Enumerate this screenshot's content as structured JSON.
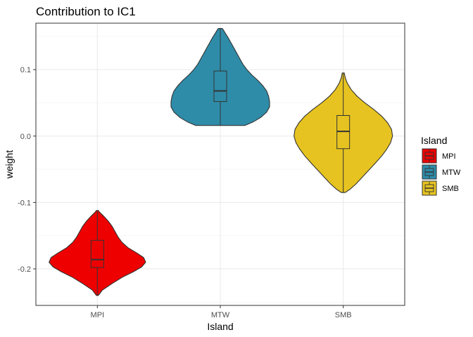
{
  "chart_data": {
    "type": "violin",
    "title": "Contribution to IC1",
    "xlabel": "Island",
    "ylabel": "weight",
    "ylim": [
      -0.255,
      0.17
    ],
    "y_ticks": [
      -0.2,
      -0.1,
      0.0,
      0.1
    ],
    "y_tick_labels": [
      "-0.2",
      "-0.1",
      "0.0",
      "0.1"
    ],
    "categories": [
      "MPI",
      "MTW",
      "SMB"
    ],
    "legend": {
      "title": "Island",
      "position": "right",
      "entries": [
        "MPI",
        "MTW",
        "SMB"
      ]
    },
    "grid": true,
    "series": [
      {
        "category": "MPI",
        "color": "#ee0000",
        "min": -0.24,
        "q1": -0.198,
        "median": -0.186,
        "q3": -0.157,
        "max": -0.112,
        "density": [
          [
            -0.24,
            0.02
          ],
          [
            -0.232,
            0.1
          ],
          [
            -0.222,
            0.3
          ],
          [
            -0.212,
            0.52
          ],
          [
            -0.204,
            0.74
          ],
          [
            -0.197,
            0.9
          ],
          [
            -0.19,
            0.98
          ],
          [
            -0.183,
            0.94
          ],
          [
            -0.176,
            0.8
          ],
          [
            -0.168,
            0.62
          ],
          [
            -0.16,
            0.5
          ],
          [
            -0.152,
            0.42
          ],
          [
            -0.144,
            0.36
          ],
          [
            -0.136,
            0.3
          ],
          [
            -0.128,
            0.22
          ],
          [
            -0.12,
            0.12
          ],
          [
            -0.115,
            0.05
          ],
          [
            -0.112,
            0.02
          ]
        ]
      },
      {
        "category": "MTW",
        "color": "#2e8ca8",
        "min": 0.016,
        "q1": 0.052,
        "median": 0.068,
        "q3": 0.098,
        "max": 0.162,
        "density": [
          [
            0.016,
            0.5
          ],
          [
            0.021,
            0.66
          ],
          [
            0.028,
            0.82
          ],
          [
            0.036,
            0.94
          ],
          [
            0.044,
            1.0
          ],
          [
            0.052,
            1.0
          ],
          [
            0.06,
            0.98
          ],
          [
            0.068,
            0.94
          ],
          [
            0.076,
            0.86
          ],
          [
            0.084,
            0.76
          ],
          [
            0.092,
            0.64
          ],
          [
            0.1,
            0.54
          ],
          [
            0.108,
            0.46
          ],
          [
            0.116,
            0.4
          ],
          [
            0.124,
            0.34
          ],
          [
            0.132,
            0.28
          ],
          [
            0.14,
            0.22
          ],
          [
            0.148,
            0.16
          ],
          [
            0.155,
            0.1
          ],
          [
            0.16,
            0.06
          ],
          [
            0.162,
            0.04
          ]
        ]
      },
      {
        "category": "SMB",
        "color": "#e6c320",
        "min": -0.085,
        "q1": -0.019,
        "median": 0.007,
        "q3": 0.031,
        "max": 0.095,
        "density": [
          [
            -0.085,
            0.04
          ],
          [
            -0.08,
            0.14
          ],
          [
            -0.072,
            0.26
          ],
          [
            -0.064,
            0.36
          ],
          [
            -0.056,
            0.46
          ],
          [
            -0.048,
            0.56
          ],
          [
            -0.04,
            0.66
          ],
          [
            -0.03,
            0.78
          ],
          [
            -0.02,
            0.88
          ],
          [
            -0.01,
            0.96
          ],
          [
            0.0,
            1.0
          ],
          [
            0.01,
            0.98
          ],
          [
            0.02,
            0.9
          ],
          [
            0.03,
            0.78
          ],
          [
            0.04,
            0.62
          ],
          [
            0.05,
            0.44
          ],
          [
            0.06,
            0.28
          ],
          [
            0.07,
            0.16
          ],
          [
            0.08,
            0.08
          ],
          [
            0.088,
            0.04
          ],
          [
            0.095,
            0.02
          ]
        ]
      }
    ]
  }
}
